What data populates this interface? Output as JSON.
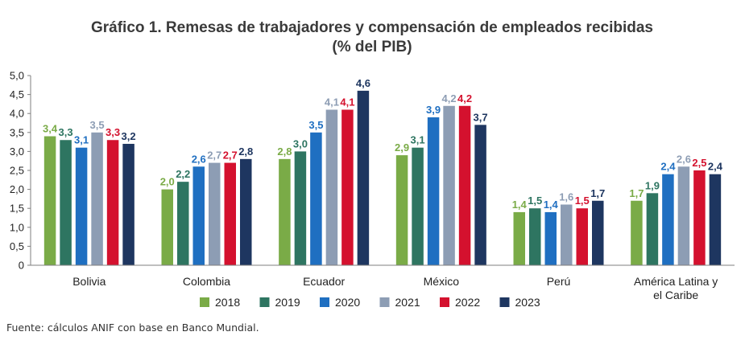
{
  "chart_data": {
    "type": "bar",
    "title": "Gráfico 1. Remesas de trabajadores y compensación de empleados recibidas",
    "subtitle": "(% del PIB)",
    "xlabel": "",
    "ylabel": "",
    "ylim": [
      0,
      5
    ],
    "yticks": [
      "0",
      "0,5",
      "1,0",
      "1,5",
      "2,0",
      "2,5",
      "3,0",
      "3,5",
      "4,0",
      "4,5",
      "5,0"
    ],
    "grid": false,
    "legend_position": "bottom",
    "categories": [
      [
        "Bolivia"
      ],
      [
        "Colombia"
      ],
      [
        "Ecuador"
      ],
      [
        "México"
      ],
      [
        "Perú"
      ],
      [
        "América Latina y",
        "el Caribe"
      ]
    ],
    "series": [
      {
        "name": "2018",
        "color": "#7aab47",
        "values": [
          3.4,
          2.0,
          2.8,
          2.9,
          1.4,
          1.7
        ],
        "labels": [
          "3,4",
          "2,0",
          "2,8",
          "2,9",
          "1,4",
          "1,7"
        ]
      },
      {
        "name": "2019",
        "color": "#2e7561",
        "values": [
          3.3,
          2.2,
          3.0,
          3.1,
          1.5,
          1.9
        ],
        "labels": [
          "3,3",
          "2,2",
          "3,0",
          "3,1",
          "1,5",
          "1,9"
        ]
      },
      {
        "name": "2020",
        "color": "#1f6fc1",
        "values": [
          3.1,
          2.6,
          3.5,
          3.9,
          1.4,
          2.4
        ],
        "labels": [
          "3,1",
          "2,6",
          "3,5",
          "3,9",
          "1,4",
          "2,4"
        ]
      },
      {
        "name": "2021",
        "color": "#8d9db4",
        "values": [
          3.5,
          2.7,
          4.1,
          4.2,
          1.6,
          2.6
        ],
        "labels": [
          "3,5",
          "2,7",
          "4,1",
          "4,2",
          "1,6",
          "2,6"
        ]
      },
      {
        "name": "2022",
        "color": "#d4112e",
        "values": [
          3.3,
          2.7,
          4.1,
          4.2,
          1.5,
          2.5
        ],
        "labels": [
          "3,3",
          "2,7",
          "4,1",
          "4,2",
          "1,5",
          "2,5"
        ]
      },
      {
        "name": "2023",
        "color": "#1e3660",
        "values": [
          3.2,
          2.8,
          4.6,
          3.7,
          1.7,
          2.4
        ],
        "labels": [
          "3,2",
          "2,8",
          "4,6",
          "3,7",
          "1,7",
          "2,4"
        ]
      }
    ]
  },
  "footer": {
    "source": "Fuente: cálculos ANIF con base en Banco Mundial."
  }
}
